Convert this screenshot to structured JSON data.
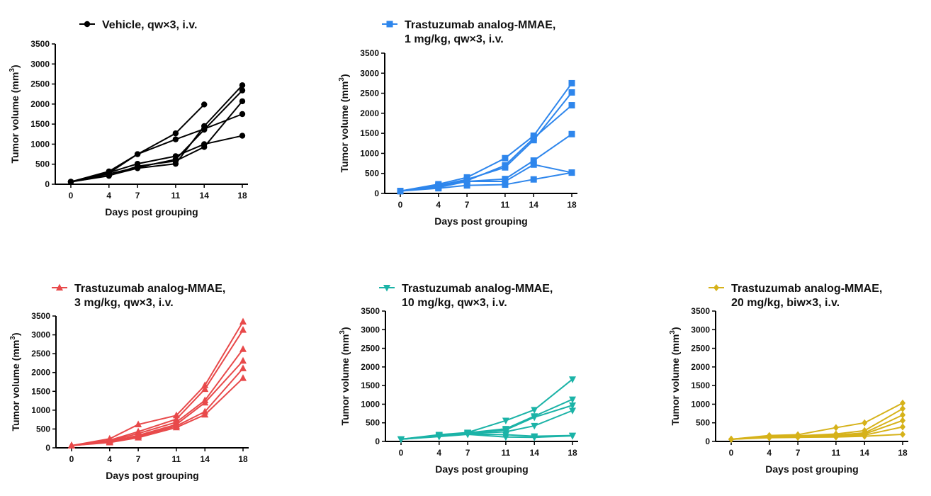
{
  "chart_data": [
    {
      "type": "line",
      "legend": [
        "Vehicle, qw×3, i.v."
      ],
      "color": "#000000",
      "marker": "circle",
      "xlabel": "Days post grouping",
      "ylabel": {
        "main": "Tumor volume (mm",
        "sup": "3",
        "end": ")"
      },
      "x": [
        0,
        4,
        7,
        11,
        14,
        18
      ],
      "xticks": [
        "0",
        "4",
        "7",
        "11",
        "14",
        "18"
      ],
      "yticks": [
        "0",
        "500",
        "1000",
        "1500",
        "2000",
        "2500",
        "3000",
        "3500"
      ],
      "ylim": [
        0,
        3500
      ],
      "series": [
        {
          "values": [
            60,
            320,
            750,
            1270,
            1990,
            null
          ]
        },
        {
          "values": [
            60,
            290,
            510,
            700,
            1000,
            1210
          ]
        },
        {
          "values": [
            60,
            260,
            420,
            620,
            1360,
            2340
          ]
        },
        {
          "values": [
            60,
            220,
            400,
            510,
            1450,
            2470
          ]
        },
        {
          "values": [
            60,
            280,
            750,
            1120,
            1380,
            1750
          ]
        },
        {
          "values": [
            60,
            210,
            450,
            580,
            930,
            2070
          ]
        }
      ]
    },
    {
      "type": "line",
      "legend": [
        "Trastuzumab analog-MMAE,",
        "1 mg/kg, qw×3, i.v."
      ],
      "color": "#2e86ec",
      "marker": "square",
      "xlabel": "Days post grouping",
      "ylabel": {
        "main": "Tumor volume (mm",
        "sup": "3",
        "end": ")"
      },
      "x": [
        0,
        4,
        7,
        11,
        14,
        18
      ],
      "xticks": [
        "0",
        "4",
        "7",
        "11",
        "14",
        "18"
      ],
      "yticks": [
        "0",
        "500",
        "1000",
        "1500",
        "2000",
        "2500",
        "3000",
        "3500"
      ],
      "ylim": [
        0,
        3500
      ],
      "series": [
        {
          "values": [
            60,
            230,
            400,
            880,
            1440,
            2750
          ]
        },
        {
          "values": [
            60,
            200,
            350,
            650,
            1330,
            2520
          ]
        },
        {
          "values": [
            60,
            190,
            320,
            700,
            1380,
            2200
          ]
        },
        {
          "values": [
            60,
            180,
            300,
            360,
            820,
            1480
          ]
        },
        {
          "values": [
            60,
            150,
            300,
            300,
            720,
            520
          ]
        },
        {
          "values": [
            60,
            130,
            200,
            220,
            350,
            520
          ]
        }
      ]
    },
    {
      "type": "line",
      "legend": [
        "Trastuzumab analog-MMAE,",
        "3 mg/kg, qw×3, i.v."
      ],
      "color": "#e8494a",
      "marker": "triangle-up",
      "xlabel": "Days post grouping",
      "ylabel": {
        "main": "Tumor volume (mm",
        "sup": "3",
        "end": ")"
      },
      "x": [
        0,
        4,
        7,
        11,
        14,
        18
      ],
      "xticks": [
        "0",
        "4",
        "7",
        "11",
        "14",
        "18"
      ],
      "yticks": [
        "0",
        "500",
        "1000",
        "1500",
        "2000",
        "2500",
        "3000",
        "3500"
      ],
      "ylim": [
        0,
        3500
      ],
      "series": [
        {
          "values": [
            60,
            240,
            620,
            860,
            1660,
            3350
          ]
        },
        {
          "values": [
            60,
            200,
            430,
            760,
            1560,
            3130
          ]
        },
        {
          "values": [
            60,
            180,
            380,
            680,
            1260,
            2620
          ]
        },
        {
          "values": [
            60,
            160,
            330,
            620,
            1200,
            2310
          ]
        },
        {
          "values": [
            60,
            150,
            300,
            580,
            960,
            2110
          ]
        },
        {
          "values": [
            60,
            140,
            270,
            540,
            880,
            1850
          ]
        }
      ]
    },
    {
      "type": "line",
      "legend": [
        "Trastuzumab analog-MMAE,",
        "10 mg/kg, qw×3, i.v."
      ],
      "color": "#1bb3a7",
      "marker": "triangle-down",
      "xlabel": "Days post grouping",
      "ylabel": {
        "main": "Tumor volume (mm",
        "sup": "3",
        "end": ")"
      },
      "x": [
        0,
        4,
        7,
        11,
        14,
        18
      ],
      "xticks": [
        "0",
        "4",
        "7",
        "11",
        "14",
        "18"
      ],
      "yticks": [
        "0",
        "500",
        "1000",
        "1500",
        "2000",
        "2500",
        "3000",
        "3500"
      ],
      "ylim": [
        0,
        3500
      ],
      "series": [
        {
          "values": [
            60,
            180,
            240,
            560,
            850,
            1670
          ]
        },
        {
          "values": [
            60,
            170,
            230,
            340,
            680,
            1130
          ]
        },
        {
          "values": [
            60,
            160,
            220,
            310,
            650,
            970
          ]
        },
        {
          "values": [
            60,
            150,
            210,
            260,
            420,
            830
          ]
        },
        {
          "values": [
            60,
            140,
            200,
            180,
            140,
            160
          ]
        },
        {
          "values": [
            60,
            130,
            190,
            120,
            110,
            150
          ]
        }
      ]
    },
    {
      "type": "line",
      "legend": [
        "Trastuzumab analog-MMAE,",
        "20 mg/kg, biw×3, i.v."
      ],
      "color": "#d6b21a",
      "marker": "diamond",
      "xlabel": "Days post grouping",
      "ylabel": {
        "main": "Tumor volume (mm",
        "sup": "3",
        "end": ")"
      },
      "x": [
        0,
        4,
        7,
        11,
        14,
        18
      ],
      "xticks": [
        "0",
        "4",
        "7",
        "11",
        "14",
        "18"
      ],
      "yticks": [
        "0",
        "500",
        "1000",
        "1500",
        "2000",
        "2500",
        "3000",
        "3500"
      ],
      "ylim": [
        0,
        3500
      ],
      "series": [
        {
          "values": [
            60,
            160,
            180,
            370,
            500,
            1030
          ]
        },
        {
          "values": [
            60,
            140,
            150,
            200,
            290,
            880
          ]
        },
        {
          "values": [
            60,
            130,
            140,
            170,
            230,
            710
          ]
        },
        {
          "values": [
            60,
            120,
            130,
            150,
            200,
            560
          ]
        },
        {
          "values": [
            60,
            110,
            120,
            130,
            170,
            390
          ]
        },
        {
          "values": [
            60,
            100,
            110,
            120,
            140,
            190
          ]
        }
      ]
    }
  ]
}
